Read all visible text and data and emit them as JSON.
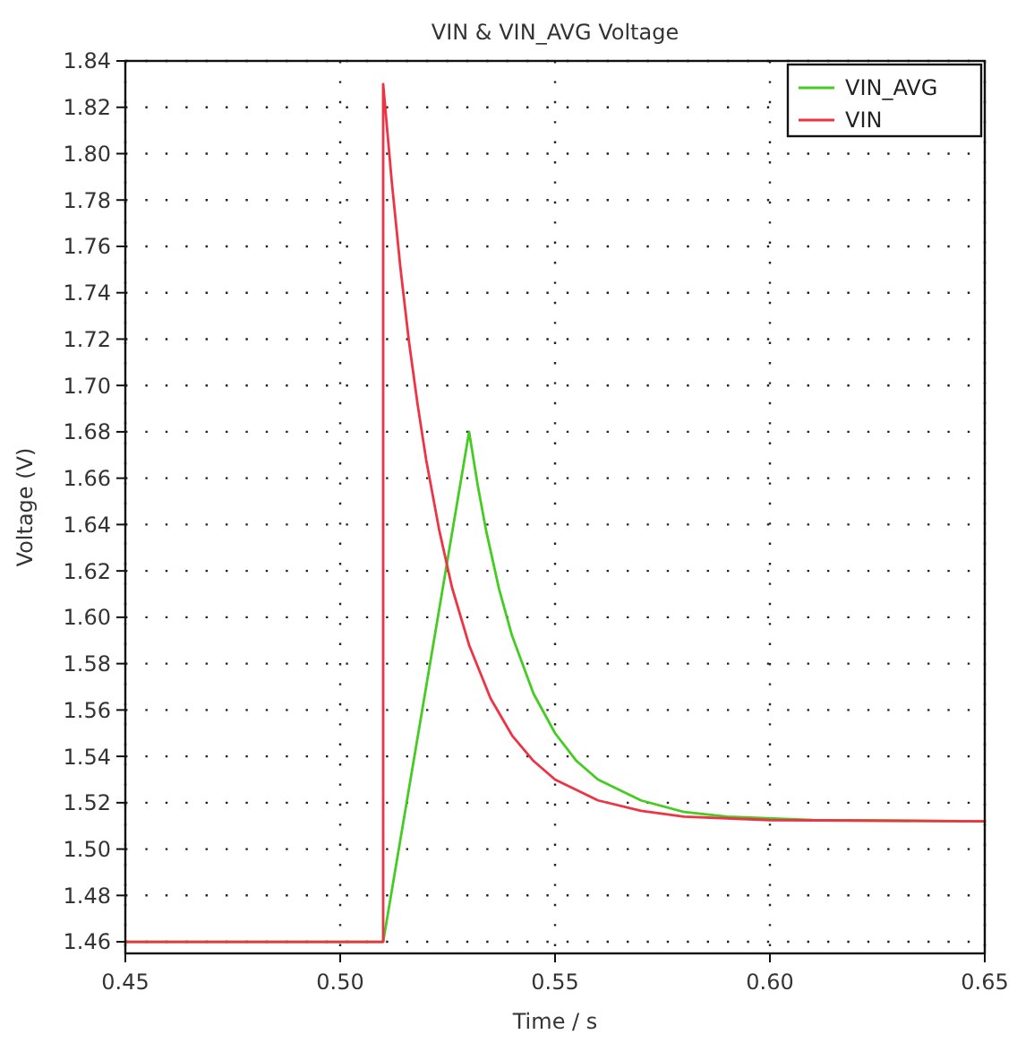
{
  "chart_data": {
    "type": "line",
    "title": "VIN & VIN_AVG Voltage",
    "xlabel": "Time / s",
    "ylabel": "Voltage (V)",
    "xlim": [
      0.45,
      0.65
    ],
    "xticks": [
      {
        "value": 0.45,
        "label": "0.45"
      },
      {
        "value": 0.5,
        "label": "0.50"
      },
      {
        "value": 0.55,
        "label": "0.55"
      },
      {
        "value": 0.6,
        "label": "0.60"
      },
      {
        "value": 0.65,
        "label": "0.65"
      }
    ],
    "ylim": [
      1.455,
      1.84
    ],
    "yticks": [
      {
        "value": 1.46,
        "label": "1.46"
      },
      {
        "value": 1.48,
        "label": "1.48"
      },
      {
        "value": 1.5,
        "label": "1.50"
      },
      {
        "value": 1.52,
        "label": "1.52"
      },
      {
        "value": 1.54,
        "label": "1.54"
      },
      {
        "value": 1.56,
        "label": "1.56"
      },
      {
        "value": 1.58,
        "label": "1.58"
      },
      {
        "value": 1.6,
        "label": "1.60"
      },
      {
        "value": 1.62,
        "label": "1.62"
      },
      {
        "value": 1.64,
        "label": "1.64"
      },
      {
        "value": 1.66,
        "label": "1.66"
      },
      {
        "value": 1.68,
        "label": "1.68"
      },
      {
        "value": 1.7,
        "label": "1.70"
      },
      {
        "value": 1.72,
        "label": "1.72"
      },
      {
        "value": 1.74,
        "label": "1.74"
      },
      {
        "value": 1.76,
        "label": "1.76"
      },
      {
        "value": 1.78,
        "label": "1.78"
      },
      {
        "value": 1.8,
        "label": "1.80"
      },
      {
        "value": 1.82,
        "label": "1.82"
      },
      {
        "value": 1.84,
        "label": "1.84"
      }
    ],
    "grid": true,
    "legend": "top right",
    "marker": "none",
    "line_style": "solid",
    "series": [
      {
        "name": "VIN_AVG",
        "color": "#44cc22",
        "x": [
          0.45,
          0.51,
          0.53,
          0.532,
          0.534,
          0.537,
          0.54,
          0.545,
          0.55,
          0.555,
          0.56,
          0.57,
          0.58,
          0.59,
          0.61,
          0.65
        ],
        "values": [
          1.46,
          1.46,
          1.68,
          1.657,
          1.637,
          1.612,
          1.592,
          1.567,
          1.55,
          1.538,
          1.53,
          1.521,
          1.516,
          1.514,
          1.5125,
          1.512
        ]
      },
      {
        "name": "VIN",
        "color": "#ee3344",
        "x": [
          0.45,
          0.51,
          0.51,
          0.512,
          0.514,
          0.516,
          0.518,
          0.52,
          0.523,
          0.526,
          0.53,
          0.535,
          0.54,
          0.545,
          0.55,
          0.56,
          0.57,
          0.58,
          0.6,
          0.65
        ],
        "values": [
          1.46,
          1.46,
          1.83,
          1.788,
          1.751,
          1.719,
          1.692,
          1.668,
          1.638,
          1.613,
          1.588,
          1.565,
          1.549,
          1.538,
          1.53,
          1.521,
          1.5165,
          1.514,
          1.5125,
          1.512
        ]
      }
    ]
  }
}
